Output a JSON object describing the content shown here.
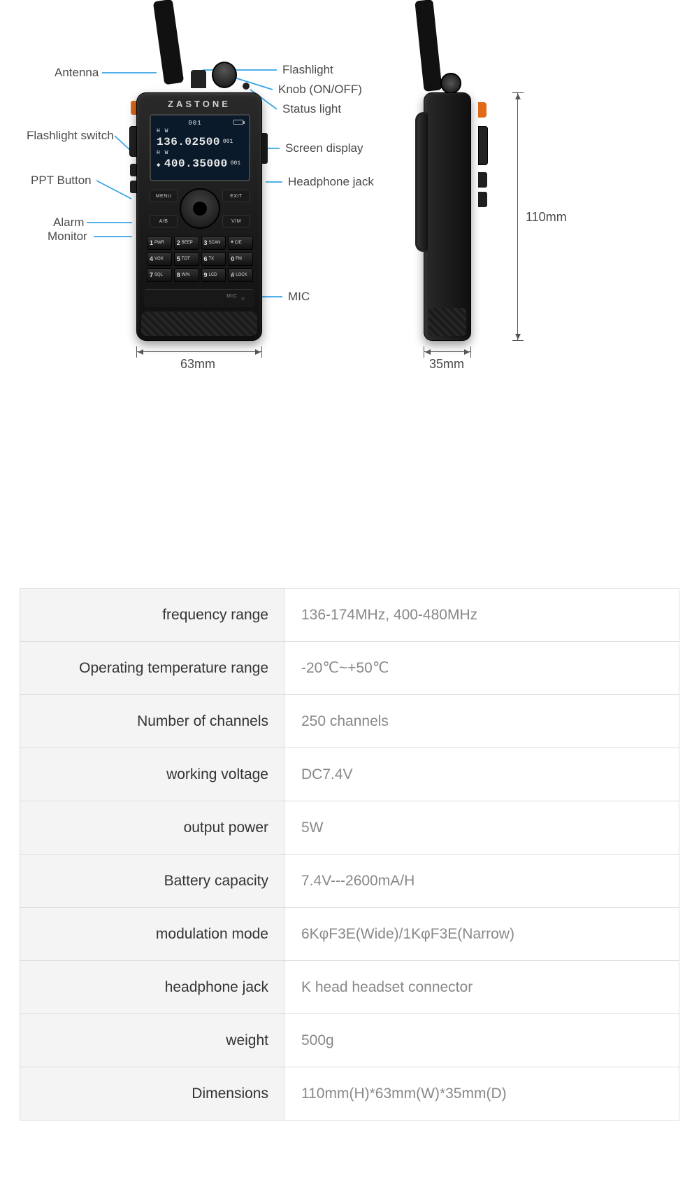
{
  "colors": {
    "callout_line": "#3aa5e6",
    "text": "#4a4a4a",
    "table_border": "#dddddd",
    "table_label_bg": "#f4f4f4",
    "table_value_color": "#888888",
    "radio_body": "#1a1a1a",
    "accent_orange": "#e06a1a"
  },
  "radio": {
    "brand": "ZASTONE",
    "screen": {
      "channel_top": "001",
      "line1_tag": "H W",
      "line1_freq": "136.02500",
      "line1_sub": "001",
      "line2_tag": "H W",
      "line2_freq": "400.35000",
      "line2_sub": "001"
    },
    "nav": {
      "menu": "MENU",
      "exit": "EXIT",
      "ab": "A/B",
      "vm": "V/M"
    },
    "keypad": [
      {
        "n": "1",
        "t": "PWR"
      },
      {
        "n": "2",
        "t": "BEEP"
      },
      {
        "n": "3",
        "t": "SCAN"
      },
      {
        "n": "*",
        "t": "C/E"
      },
      {
        "n": "4",
        "t": "VOX"
      },
      {
        "n": "5",
        "t": "TOT"
      },
      {
        "n": "6",
        "t": "TX"
      },
      {
        "n": "0",
        "t": "FM"
      },
      {
        "n": "7",
        "t": "SQL"
      },
      {
        "n": "8",
        "t": "W/N"
      },
      {
        "n": "9",
        "t": "LCD"
      },
      {
        "n": "#",
        "t": "LOCK"
      }
    ],
    "mic_label": "MIC"
  },
  "callouts": {
    "left": [
      {
        "id": "antenna",
        "text": "Antenna"
      },
      {
        "id": "flashlight_switch",
        "text": "Flashlight switch"
      },
      {
        "id": "ppt_button",
        "text": "PPT Button"
      },
      {
        "id": "alarm",
        "text": "Alarm"
      },
      {
        "id": "monitor",
        "text": "Monitor"
      }
    ],
    "right": [
      {
        "id": "flashlight",
        "text": "Flashlight"
      },
      {
        "id": "knob",
        "text": "Knob (ON/OFF)"
      },
      {
        "id": "status_light",
        "text": "Status light"
      },
      {
        "id": "screen_display",
        "text": "Screen display"
      },
      {
        "id": "headphone_jack",
        "text": "Headphone jack"
      },
      {
        "id": "mic",
        "text": "MIC"
      }
    ]
  },
  "dimensions": {
    "front_width": "63mm",
    "side_depth": "35mm",
    "height": "110mm"
  },
  "spec_table": {
    "rows": [
      {
        "label": "frequency range",
        "value": "136-174MHz, 400-480MHz"
      },
      {
        "label": "Operating temperature range",
        "value": "-20℃~+50℃"
      },
      {
        "label": "Number of channels",
        "value": "250 channels"
      },
      {
        "label": "working voltage",
        "value": " DC7.4V"
      },
      {
        "label": "output power",
        "value": "5W"
      },
      {
        "label": "Battery capacity",
        "value": "7.4V---2600mA/H"
      },
      {
        "label": "modulation mode",
        "value": "6KφF3E(Wide)/1KφF3E(Narrow)"
      },
      {
        "label": "headphone jack",
        "value": "K head headset connector"
      },
      {
        "label": "weight",
        "value": "500g"
      },
      {
        "label": "Dimensions",
        "value": "110mm(H)*63mm(W)*35mm(D)"
      }
    ]
  }
}
